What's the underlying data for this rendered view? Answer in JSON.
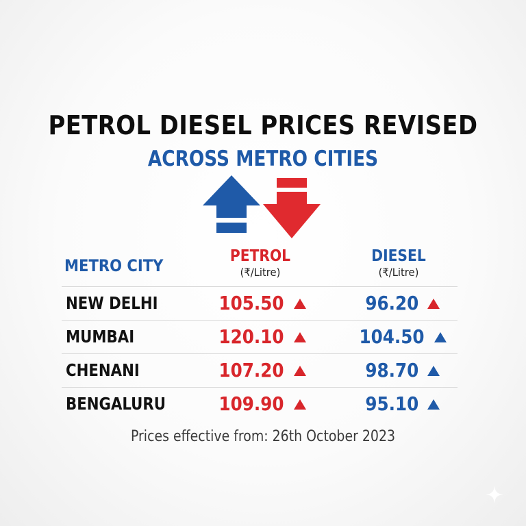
{
  "headline": "PETROL DIESEL PRICES REVISED",
  "subheadline": "ACROSS METRO CITIES",
  "arrows": {
    "up_icon": "arrow-up-icon",
    "down_icon": "arrow-down-icon",
    "up_color": "#1f5aa8",
    "down_color": "#e02a2f"
  },
  "table": {
    "headers": {
      "city": "METRO CITY",
      "petrol": "PETROL",
      "petrol_unit": "(₹/Litre)",
      "diesel": "DIESEL",
      "diesel_unit": "(₹/Litre)"
    },
    "rows": [
      {
        "city": "NEW DELHI",
        "petrol": "105.50",
        "petrol_trend": "up",
        "diesel": "96.20",
        "diesel_trend": "up",
        "diesel_trend_color": "#d8262b"
      },
      {
        "city": "MUMBAI",
        "petrol": "120.10",
        "petrol_trend": "up",
        "diesel": "104.50",
        "diesel_trend": "up",
        "diesel_trend_color": "#1f5aa8"
      },
      {
        "city": "CHENANI",
        "petrol": "107.20",
        "petrol_trend": "up",
        "diesel": "98.70",
        "diesel_trend": "up",
        "diesel_trend_color": "#1f5aa8"
      },
      {
        "city": "BENGALURU",
        "petrol": "109.90",
        "petrol_trend": "up",
        "diesel": "95.10",
        "diesel_trend": "up",
        "diesel_trend_color": "#1f5aa8"
      }
    ]
  },
  "footer": {
    "effective_text": "Prices effective from: 26th October 2023"
  },
  "colors": {
    "headline": "#0e0e0e",
    "accent_blue": "#1f5aa8",
    "accent_red": "#d8262b"
  },
  "watermark_icon": "sparkle-icon"
}
